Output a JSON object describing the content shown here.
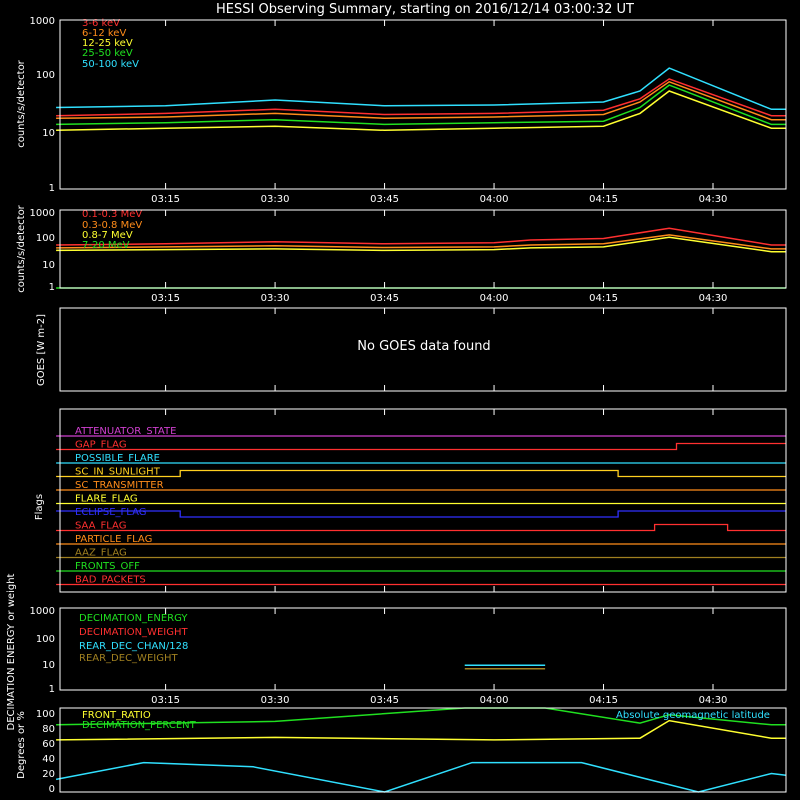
{
  "title": "HESSI Observing Summary, starting on 2016/12/14 03:00:32 UT",
  "time_ticks": [
    "03:15",
    "03:30",
    "03:45",
    "04:00",
    "04:15",
    "04:30"
  ],
  "chart_data": [
    {
      "type": "line",
      "ylabel": "counts/s/detector",
      "yscale": "log",
      "ylim": [
        1,
        1000
      ],
      "ytick_labels": [
        "1",
        "10",
        "100",
        "1000"
      ],
      "xlim": [
        "03:00:32",
        "04:40:00"
      ],
      "series": [
        {
          "name": "3-6 keV",
          "color": "#ff3030",
          "x": [
            "03:00",
            "03:15",
            "03:30",
            "03:45",
            "04:00",
            "04:15",
            "04:20",
            "04:24",
            "04:38",
            "04:40"
          ],
          "values": [
            20,
            22,
            26,
            21,
            22,
            25,
            40,
            90,
            20,
            20
          ]
        },
        {
          "name": "6-12 keV",
          "color": "#ff8c1a",
          "x": [
            "03:00",
            "03:15",
            "03:30",
            "03:45",
            "04:00",
            "04:15",
            "04:20",
            "04:24",
            "04:38",
            "04:40"
          ],
          "values": [
            18,
            19,
            22,
            18,
            19,
            21,
            35,
            80,
            17,
            17
          ]
        },
        {
          "name": "12-25 keV",
          "color": "#ffff30",
          "x": [
            "03:00",
            "03:15",
            "03:30",
            "03:45",
            "04:00",
            "04:15",
            "04:20",
            "04:24",
            "04:38",
            "04:40"
          ],
          "values": [
            11,
            12,
            13,
            11,
            12,
            13,
            22,
            55,
            12,
            12
          ]
        },
        {
          "name": "25-50 keV",
          "color": "#20e020",
          "x": [
            "03:00",
            "03:15",
            "03:30",
            "03:45",
            "04:00",
            "04:15",
            "04:20",
            "04:24",
            "04:38",
            "04:40"
          ],
          "values": [
            14,
            15,
            17,
            14,
            15,
            16,
            28,
            70,
            14,
            14
          ]
        },
        {
          "name": "50-100 keV",
          "color": "#30e0ff",
          "x": [
            "03:00",
            "03:15",
            "03:30",
            "03:45",
            "04:00",
            "04:15",
            "04:20",
            "04:24",
            "04:38",
            "04:40"
          ],
          "values": [
            28,
            30,
            38,
            30,
            31,
            35,
            55,
            140,
            26,
            26
          ]
        }
      ]
    },
    {
      "type": "line",
      "ylabel": "counts/s/detector",
      "yscale": "log",
      "ylim": [
        1,
        1000
      ],
      "ytick_labels": [
        "1",
        "10",
        "100",
        "1000"
      ],
      "xlim": [
        "03:00:32",
        "04:40:00"
      ],
      "series": [
        {
          "name": "0.1-0.3 MeV",
          "color": "#ff3030",
          "x": [
            "03:00",
            "03:15",
            "03:30",
            "03:45",
            "04:00",
            "04:05",
            "04:15",
            "04:24",
            "04:38",
            "04:40"
          ],
          "values": [
            45,
            50,
            60,
            50,
            55,
            70,
            80,
            200,
            45,
            45
          ]
        },
        {
          "name": "0.3-0.8 MeV",
          "color": "#ff8c1a",
          "x": [
            "03:00",
            "03:15",
            "03:30",
            "03:45",
            "04:00",
            "04:05",
            "04:15",
            "04:24",
            "04:38",
            "04:40"
          ],
          "values": [
            35,
            38,
            42,
            36,
            38,
            45,
            50,
            110,
            32,
            32
          ]
        },
        {
          "name": "0.8-7 MeV",
          "color": "#ffff30",
          "x": [
            "03:00",
            "03:15",
            "03:30",
            "03:45",
            "04:00",
            "04:05",
            "04:15",
            "04:24",
            "04:38",
            "04:40"
          ],
          "values": [
            28,
            30,
            32,
            28,
            30,
            35,
            38,
            90,
            25,
            25
          ]
        },
        {
          "name": "7-20 MeV",
          "color": "#20e020",
          "x": [
            "03:00",
            "03:15",
            "03:30",
            "03:45",
            "04:00",
            "04:05",
            "04:15",
            "04:24",
            "04:38",
            "04:40"
          ],
          "values": [
            1,
            1,
            1,
            1,
            1,
            1,
            1,
            1,
            1,
            1
          ]
        }
      ]
    },
    {
      "type": "line",
      "ylabel": "GOES [W m-2]",
      "annotation": "No GOES data found",
      "series": []
    },
    {
      "type": "line",
      "ylabel": "Flags",
      "series": [
        {
          "name": "ATTENUATOR_STATE",
          "color": "#d040d0",
          "segments": [
            [
              "03:00",
              "04:40",
              0
            ]
          ]
        },
        {
          "name": "GAP_FLAG",
          "color": "#ff3030",
          "segments": [
            [
              "03:00",
              "04:25",
              0
            ],
            [
              "04:25",
              "04:40",
              1
            ]
          ]
        },
        {
          "name": "POSSIBLE_FLARE",
          "color": "#30e0ff",
          "segments": [
            [
              "03:00",
              "04:40",
              0
            ]
          ]
        },
        {
          "name": "SC_IN_SUNLIGHT",
          "color": "#ffd020",
          "segments": [
            [
              "03:00",
              "03:17",
              0
            ],
            [
              "03:17",
              "04:17",
              1
            ],
            [
              "04:17",
              "04:40",
              0
            ]
          ]
        },
        {
          "name": "SC_TRANSMITTER",
          "color": "#ff8c1a",
          "segments": [
            [
              "03:00",
              "04:40",
              0
            ]
          ]
        },
        {
          "name": "FLARE_FLAG",
          "color": "#ffff30",
          "segments": [
            [
              "03:00",
              "04:40",
              0
            ]
          ]
        },
        {
          "name": "ECLIPSE_FLAG",
          "color": "#3030ff",
          "segments": [
            [
              "03:00",
              "03:17",
              1
            ],
            [
              "03:17",
              "04:17",
              0
            ],
            [
              "04:17",
              "04:40",
              1
            ]
          ]
        },
        {
          "name": "SAA_FLAG",
          "color": "#ff3030",
          "segments": [
            [
              "03:00",
              "04:22",
              0
            ],
            [
              "04:22",
              "04:32",
              1
            ],
            [
              "04:32",
              "04:40",
              0
            ]
          ]
        },
        {
          "name": "PARTICLE_FLAG",
          "color": "#ff8c1a",
          "segments": [
            [
              "03:00",
              "04:40",
              0
            ]
          ]
        },
        {
          "name": "AAZ_FLAG",
          "color": "#a08020",
          "segments": [
            [
              "03:00",
              "04:40",
              0
            ]
          ]
        },
        {
          "name": "FRONTS_OFF",
          "color": "#20e020",
          "segments": [
            [
              "03:00",
              "04:40",
              0
            ]
          ]
        },
        {
          "name": "BAD_PACKETS",
          "color": "#ff3030",
          "segments": [
            [
              "03:00",
              "04:40",
              0
            ]
          ]
        }
      ]
    },
    {
      "type": "line",
      "ylabel": "DECIMATION ENERGY or weight",
      "yscale": "log",
      "ylim": [
        1,
        1000
      ],
      "ytick_labels": [
        "1",
        "10",
        "100",
        "1000"
      ],
      "series": [
        {
          "name": "DECIMATION_ENERGY",
          "color": "#20e020",
          "x": [
            "03:56",
            "04:07"
          ],
          "values": [
            8,
            8
          ]
        },
        {
          "name": "DECIMATION_WEIGHT",
          "color": "#ff3030",
          "x": [],
          "values": []
        },
        {
          "name": "REAR_DEC_CHAN/128",
          "color": "#30e0ff",
          "x": [
            "03:56",
            "04:07"
          ],
          "values": [
            8,
            8
          ]
        },
        {
          "name": "REAR_DEC_WEIGHT",
          "color": "#a08020",
          "x": [
            "03:56",
            "04:07"
          ],
          "values": [
            6,
            6
          ]
        }
      ]
    },
    {
      "type": "line",
      "ylabel": "Degrees or %",
      "ylim": [
        0,
        100
      ],
      "ytick_labels": [
        "0",
        "20",
        "40",
        "60",
        "80",
        "100"
      ],
      "annotation": "Absolute geomagnetic latitude",
      "series": [
        {
          "name": "FRONT_RATIO",
          "color": "#ffff30",
          "x": [
            "03:00",
            "03:30",
            "04:00",
            "04:20",
            "04:24",
            "04:38",
            "04:40"
          ],
          "values": [
            62,
            65,
            62,
            64,
            85,
            64,
            64
          ]
        },
        {
          "name": "DECIMATION_PERCENT",
          "color": "#20e020",
          "x": [
            "03:00",
            "03:30",
            "03:56",
            "04:07",
            "04:20",
            "04:24",
            "04:38",
            "04:40"
          ],
          "values": [
            80,
            84,
            100,
            100,
            82,
            92,
            80,
            80
          ]
        },
        {
          "name": "Absolute geomagnetic latitude",
          "color": "#30e0ff",
          "x": [
            "03:00",
            "03:12",
            "03:27",
            "03:45",
            "03:57",
            "04:12",
            "04:28",
            "04:38",
            "04:40"
          ],
          "values": [
            15,
            35,
            30,
            0,
            35,
            35,
            0,
            22,
            20
          ]
        }
      ]
    }
  ]
}
